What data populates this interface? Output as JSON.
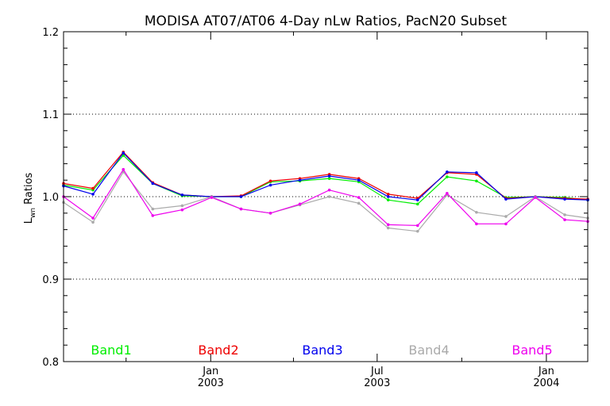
{
  "chart_data": {
    "type": "line",
    "title": "MODISA AT07/AT06 4-Day nLw Ratios, PacN20 Subset",
    "ylabel_main": "L",
    "ylabel_sub": "wn",
    "ylabel_rest": " Ratios",
    "ylim": [
      0.8,
      1.2
    ],
    "yticks": [
      {
        "value": 0.8,
        "label": "0.8"
      },
      {
        "value": 0.9,
        "label": "0.9"
      },
      {
        "value": 1.0,
        "label": "1.0"
      },
      {
        "value": 1.1,
        "label": "1.1"
      },
      {
        "value": 1.2,
        "label": "1.2"
      }
    ],
    "grid_y": [
      0.9,
      1.0,
      1.1
    ],
    "xlim": [
      "2002-07-25",
      "2004-02-15"
    ],
    "xticks_major": [
      {
        "date": "2003-01-01",
        "month": "Jan",
        "year": "2003"
      },
      {
        "date": "2003-07-01",
        "month": "Jul",
        "year": "2003"
      },
      {
        "date": "2004-01-01",
        "month": "Jan",
        "year": "2004"
      }
    ],
    "xticks_minor": [
      "2002-10-01",
      "2003-04-01",
      "2003-10-01"
    ],
    "x": [
      "2002-07-25",
      "2002-08-26",
      "2002-09-28",
      "2002-10-30",
      "2002-12-01",
      "2003-01-02",
      "2003-02-03",
      "2003-03-07",
      "2003-04-08",
      "2003-05-10",
      "2003-06-11",
      "2003-07-13",
      "2003-08-14",
      "2003-09-15",
      "2003-10-17",
      "2003-11-18",
      "2003-12-20",
      "2004-01-21",
      "2004-02-15"
    ],
    "series": [
      {
        "name": "Band1",
        "color": "#00ee00",
        "values": [
          1.014,
          1.008,
          1.05,
          1.016,
          1.001,
          1.0,
          1.0,
          1.018,
          1.019,
          1.022,
          1.018,
          0.996,
          0.991,
          1.024,
          1.019,
          0.999,
          1.0,
          0.999,
          0.996
        ]
      },
      {
        "name": "Band2",
        "color": "#ee0000",
        "values": [
          1.016,
          1.01,
          1.054,
          1.017,
          1.002,
          1.0,
          1.001,
          1.019,
          1.022,
          1.027,
          1.022,
          1.003,
          0.998,
          1.029,
          1.027,
          0.998,
          1.0,
          0.998,
          0.997
        ]
      },
      {
        "name": "Band3",
        "color": "#0000ee",
        "values": [
          1.013,
          1.003,
          1.053,
          1.016,
          1.002,
          1.0,
          1.0,
          1.014,
          1.02,
          1.025,
          1.02,
          1.0,
          0.996,
          1.03,
          1.029,
          0.997,
          1.0,
          0.997,
          0.996
        ]
      },
      {
        "name": "Band4",
        "color": "#aaaaaa",
        "values": [
          0.993,
          0.969,
          1.03,
          0.985,
          0.989,
          1.0,
          0.985,
          0.98,
          0.99,
          1.0,
          0.992,
          0.962,
          0.958,
          1.002,
          0.981,
          0.976,
          1.0,
          0.978,
          0.974
        ]
      },
      {
        "name": "Band5",
        "color": "#ee00ee",
        "values": [
          1.0,
          0.974,
          1.033,
          0.977,
          0.984,
          0.999,
          0.985,
          0.98,
          0.991,
          1.008,
          0.999,
          0.966,
          0.965,
          1.004,
          0.967,
          0.967,
          0.999,
          0.972,
          0.97
        ]
      }
    ],
    "grid": true,
    "legend_placement": "bottom, inside plot"
  }
}
